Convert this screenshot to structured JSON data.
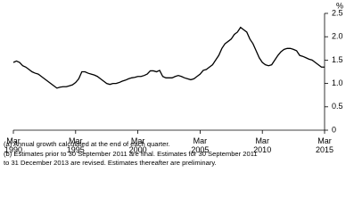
{
  "chart_data": {
    "type": "line",
    "y_unit": "%",
    "categories": [
      "Mar 1990",
      null,
      null,
      null,
      null,
      null,
      null,
      null,
      null,
      null,
      null,
      null,
      null,
      null,
      null,
      null,
      null,
      null,
      null,
      null,
      "Mar 1995",
      null,
      null,
      null,
      null,
      null,
      null,
      null,
      null,
      null,
      null,
      null,
      null,
      null,
      null,
      null,
      null,
      null,
      null,
      null,
      "Mar 2000",
      null,
      null,
      null,
      null,
      null,
      null,
      null,
      null,
      null,
      null,
      null,
      null,
      null,
      null,
      null,
      null,
      null,
      null,
      null,
      "Mar 2005",
      null,
      null,
      null,
      null,
      null,
      null,
      null,
      null,
      null,
      null,
      null,
      null,
      null,
      null,
      null,
      null,
      null,
      null,
      null,
      "Mar 2010",
      null,
      null,
      null,
      null,
      null,
      null,
      null,
      null,
      null,
      null,
      null,
      null,
      null,
      null,
      null,
      null,
      null,
      null,
      null,
      "Mar 2015"
    ],
    "series": [
      {
        "color": "#000000",
        "values": [
          1.45,
          1.48,
          1.45,
          1.38,
          1.35,
          1.3,
          1.25,
          1.22,
          1.2,
          1.15,
          1.1,
          1.05,
          1.0,
          0.95,
          0.9,
          0.92,
          0.93,
          0.93,
          0.95,
          0.97,
          1.02,
          1.1,
          1.25,
          1.25,
          1.22,
          1.2,
          1.18,
          1.15,
          1.1,
          1.05,
          1.0,
          0.98,
          1.0,
          1.0,
          1.02,
          1.05,
          1.07,
          1.1,
          1.12,
          1.13,
          1.15,
          1.15,
          1.17,
          1.2,
          1.27,
          1.27,
          1.25,
          1.28,
          1.15,
          1.12,
          1.12,
          1.12,
          1.15,
          1.17,
          1.15,
          1.12,
          1.1,
          1.08,
          1.1,
          1.15,
          1.2,
          1.28,
          1.3,
          1.35,
          1.4,
          1.5,
          1.6,
          1.75,
          1.85,
          1.9,
          1.95,
          2.05,
          2.1,
          2.2,
          2.15,
          2.1,
          1.95,
          1.85,
          1.7,
          1.55,
          1.45,
          1.4,
          1.38,
          1.4,
          1.5,
          1.6,
          1.68,
          1.73,
          1.75,
          1.75,
          1.73,
          1.7,
          1.6,
          1.58,
          1.55,
          1.52,
          1.5,
          1.45,
          1.4,
          1.35,
          1.35
        ]
      }
    ],
    "ylim": [
      0,
      2.5
    ],
    "yticks": [
      0,
      0.5,
      {
        "value": 1,
        "label": "1.0"
      },
      1.5,
      {
        "value": 2,
        "label": "2.0"
      },
      2.5
    ],
    "notes": [
      "(a) Annual growth calculated at the end of each quarter.",
      "(b) Estimates prior to 30 September 2011 are final. Estimates for 30 September 2011",
      "to 31 December 2013 are revised. Estimates thereafter are preliminary."
    ]
  }
}
